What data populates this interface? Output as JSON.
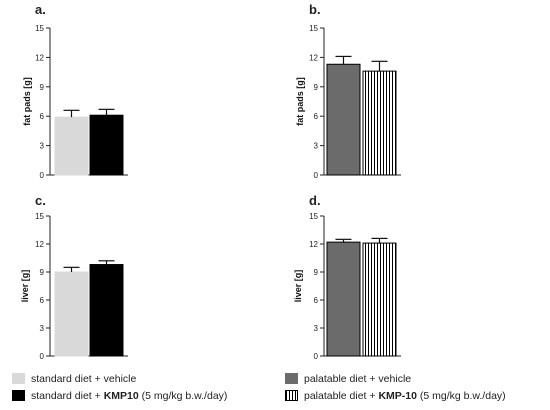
{
  "panels": [
    {
      "label": "a.",
      "ylabel": "fat pads [g]"
    },
    {
      "label": "b.",
      "ylabel": "fat pads [g]"
    },
    {
      "label": "c.",
      "ylabel": "liver [g]"
    },
    {
      "label": "d.",
      "ylabel": "liver [g]"
    }
  ],
  "legend_left": [
    {
      "prefix": "standard diet + vehicle",
      "bold": "",
      "suffix": ""
    },
    {
      "prefix": "standard diet + ",
      "bold": "KMP10",
      "suffix": " (5 mg/kg b.w./day)"
    }
  ],
  "legend_right": [
    {
      "prefix": "palatable diet + vehicle",
      "bold": "",
      "suffix": ""
    },
    {
      "prefix": "palatable diet + ",
      "bold": "KMP-10",
      "suffix": " (5 mg/kg b.w./day)"
    }
  ],
  "colors": {
    "light": "#d9d9d9",
    "black": "#000000",
    "dark": "#6b6b6b",
    "striped": "#ffffff"
  },
  "chart_data": [
    {
      "type": "bar",
      "id": "a",
      "ylabel": "fat pads [g]",
      "ylim": [
        0,
        15
      ],
      "yticks": [
        0,
        3,
        6,
        9,
        12,
        15
      ],
      "series": [
        {
          "name": "standard diet + vehicle",
          "value": 5.9,
          "error": 0.7,
          "fill": "light"
        },
        {
          "name": "standard diet + KMP10 (5 mg/kg b.w./day)",
          "value": 6.1,
          "error": 0.6,
          "fill": "black"
        }
      ]
    },
    {
      "type": "bar",
      "id": "b",
      "ylabel": "fat pads [g]",
      "ylim": [
        0,
        15
      ],
      "yticks": [
        0,
        3,
        6,
        9,
        12,
        15
      ],
      "series": [
        {
          "name": "palatable diet + vehicle",
          "value": 11.3,
          "error": 0.8,
          "fill": "dark"
        },
        {
          "name": "palatable diet + KMP-10 (5 mg/kg b.w./day)",
          "value": 10.6,
          "error": 1.0,
          "fill": "striped"
        }
      ]
    },
    {
      "type": "bar",
      "id": "c",
      "ylabel": "liver [g]",
      "ylim": [
        0,
        15
      ],
      "yticks": [
        0,
        3,
        6,
        9,
        12,
        15
      ],
      "series": [
        {
          "name": "standard diet + vehicle",
          "value": 9.0,
          "error": 0.5,
          "fill": "light"
        },
        {
          "name": "standard diet + KMP10 (5 mg/kg b.w./day)",
          "value": 9.8,
          "error": 0.4,
          "fill": "black"
        }
      ]
    },
    {
      "type": "bar",
      "id": "d",
      "ylabel": "liver [g]",
      "ylim": [
        0,
        15
      ],
      "yticks": [
        0,
        3,
        6,
        9,
        12,
        15
      ],
      "series": [
        {
          "name": "palatable diet + vehicle",
          "value": 12.2,
          "error": 0.3,
          "fill": "dark"
        },
        {
          "name": "palatable diet + KMP-10 (5 mg/kg b.w./day)",
          "value": 12.1,
          "error": 0.5,
          "fill": "striped"
        }
      ]
    }
  ]
}
